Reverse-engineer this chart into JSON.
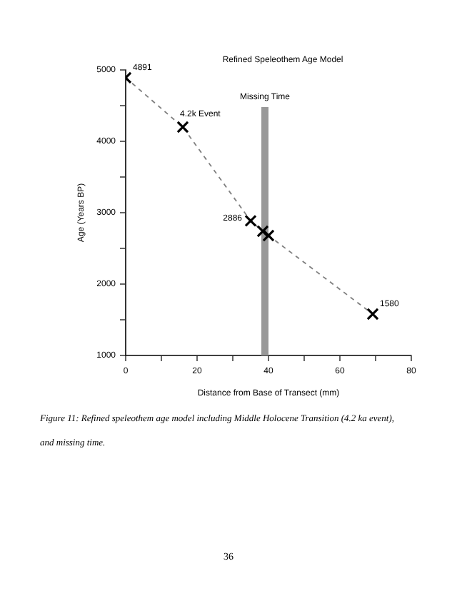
{
  "chart_data": {
    "type": "line",
    "title": "Refined Speleothem Age Model",
    "xlabel": "Distance from Base of Transect (mm)",
    "ylabel": "Age (Years BP)",
    "x": [
      0,
      16,
      35,
      38.4,
      40,
      69.2
    ],
    "series": [
      {
        "color": "#000000",
        "values": [
          4891,
          4200,
          2886,
          2740,
          2680,
          1580
        ],
        "value_labels": [
          "4891",
          null,
          "2886",
          null,
          null,
          "1580"
        ]
      }
    ],
    "marker": "cross",
    "line_style": "dashed",
    "grid": false,
    "legend": false,
    "xlim": [
      0,
      80
    ],
    "xticks": [
      0,
      {
        "value": 10,
        "label": null
      },
      20,
      {
        "value": 30,
        "label": null
      },
      40,
      {
        "value": 50,
        "label": null
      },
      60,
      {
        "value": 70,
        "label": null
      },
      80
    ],
    "ylim": [
      1000,
      5000
    ],
    "yticks": [
      1000,
      {
        "value": 1500,
        "label": null
      },
      2000,
      {
        "value": 2500,
        "label": null
      },
      3000,
      {
        "value": 3500,
        "label": null
      },
      4000,
      {
        "value": 4500,
        "label": null
      },
      5000
    ],
    "bands": [
      {
        "axis": "x",
        "from": 38,
        "to": 40,
        "label": "Missing Time",
        "color": "#999999"
      }
    ],
    "annotations": [
      {
        "text": "4.2k Event",
        "x": 16,
        "y": 4200
      },
      "Figure 11:  Refined speleothem age model including Middle Holocene Transition (4.2 ka event), and missing time.",
      "36"
    ]
  }
}
